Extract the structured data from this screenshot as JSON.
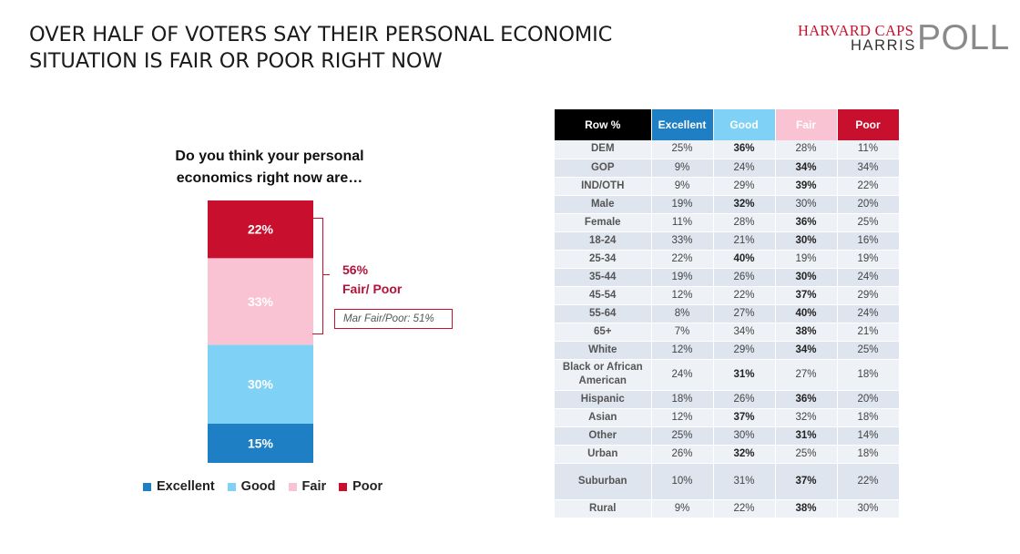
{
  "headline": {
    "line1": "OVER HALF OF VOTERS SAY THEIR PERSONAL ECONOMIC",
    "line2": "SITUATION IS FAIR OR POOR RIGHT NOW"
  },
  "logo": {
    "line1": "HARVARD CAPS",
    "line2": "HARRIS",
    "line3": "POLL"
  },
  "chart_data": {
    "type": "bar",
    "stacked": true,
    "title": "Do you think your personal economics right now are…",
    "title_lines": [
      "Do you think your personal",
      "economics right now are…"
    ],
    "categories": [
      ""
    ],
    "series": [
      {
        "name": "Excellent",
        "values": [
          15
        ],
        "label": "15%",
        "color": "#1f7fc4"
      },
      {
        "name": "Good",
        "values": [
          30
        ],
        "label": "30%",
        "color": "#7fd1f5"
      },
      {
        "name": "Fair",
        "values": [
          33
        ],
        "label": "33%",
        "color": "#f9c3d3"
      },
      {
        "name": "Poor",
        "values": [
          22
        ],
        "label": "22%",
        "color": "#c8102e"
      }
    ],
    "ylim": [
      0,
      100
    ],
    "legend": "bottom",
    "annotation": {
      "line1": "56%",
      "line2": "Fair/ Poor",
      "comparison": "Mar Fair/Poor: 51%"
    }
  },
  "table": {
    "headers": [
      {
        "label": "Row %",
        "bg": "#000000",
        "fg": "#ffffff"
      },
      {
        "label": "Excellent",
        "bg": "#1f7fc4",
        "fg": "#ffffff"
      },
      {
        "label": "Good",
        "bg": "#7fd1f5",
        "fg": "#ffffff"
      },
      {
        "label": "Fair",
        "bg": "#f9c3d3",
        "fg": "#ffffff"
      },
      {
        "label": "Poor",
        "bg": "#c8102e",
        "fg": "#ffffff"
      }
    ],
    "rows": [
      {
        "label": "DEM",
        "values": [
          "25%",
          "36%",
          "28%",
          "11%"
        ],
        "bold": 1
      },
      {
        "label": "GOP",
        "values": [
          "9%",
          "24%",
          "34%",
          "34%"
        ],
        "bold": 2
      },
      {
        "label": "IND/OTH",
        "values": [
          "9%",
          "29%",
          "39%",
          "22%"
        ],
        "bold": 2
      },
      {
        "label": "Male",
        "values": [
          "19%",
          "32%",
          "30%",
          "20%"
        ],
        "bold": 1
      },
      {
        "label": "Female",
        "values": [
          "11%",
          "28%",
          "36%",
          "25%"
        ],
        "bold": 2
      },
      {
        "label": "18-24",
        "values": [
          "33%",
          "21%",
          "30%",
          "16%"
        ],
        "bold": 2
      },
      {
        "label": "25-34",
        "values": [
          "22%",
          "40%",
          "19%",
          "19%"
        ],
        "bold": 1
      },
      {
        "label": "35-44",
        "values": [
          "19%",
          "26%",
          "30%",
          "24%"
        ],
        "bold": 2
      },
      {
        "label": "45-54",
        "values": [
          "12%",
          "22%",
          "37%",
          "29%"
        ],
        "bold": 2
      },
      {
        "label": "55-64",
        "values": [
          "8%",
          "27%",
          "40%",
          "24%"
        ],
        "bold": 2
      },
      {
        "label": "65+",
        "values": [
          "7%",
          "34%",
          "38%",
          "21%"
        ],
        "bold": 2
      },
      {
        "label": "White",
        "values": [
          "12%",
          "29%",
          "34%",
          "25%"
        ],
        "bold": 2
      },
      {
        "label": "Black or African American",
        "values": [
          "24%",
          "31%",
          "27%",
          "18%"
        ],
        "bold": 1
      },
      {
        "label": "Hispanic",
        "values": [
          "18%",
          "26%",
          "36%",
          "20%"
        ],
        "bold": 2
      },
      {
        "label": "Asian",
        "values": [
          "12%",
          "37%",
          "32%",
          "18%"
        ],
        "bold": 1
      },
      {
        "label": "Other",
        "values": [
          "25%",
          "30%",
          "31%",
          "14%"
        ],
        "bold": 2
      },
      {
        "label": "Urban",
        "values": [
          "26%",
          "32%",
          "25%",
          "18%"
        ],
        "bold": 1
      },
      {
        "label": "Suburban",
        "values": [
          "10%",
          "31%",
          "37%",
          "22%"
        ],
        "bold": 2
      },
      {
        "label": "Rural",
        "values": [
          "9%",
          "22%",
          "38%",
          "30%"
        ],
        "bold": 2
      }
    ]
  }
}
